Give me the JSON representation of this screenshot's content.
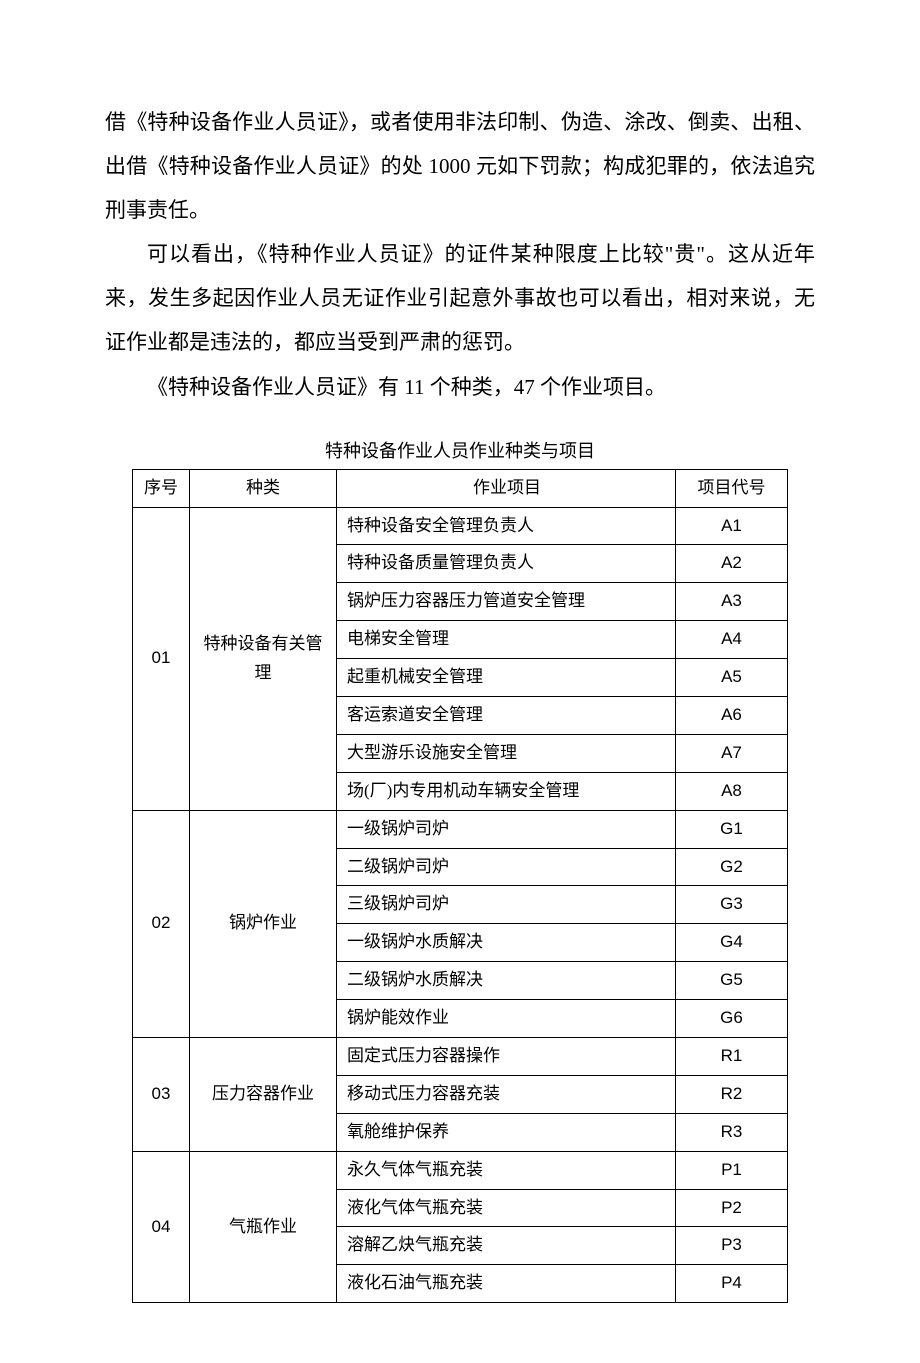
{
  "paragraphs": {
    "p1": "借《特种设备作业人员证》，或者使用非法印制、伪造、涂改、倒卖、出租、出借《特种设备作业人员证》的处 1000 元如下罚款；构成犯罪的，依法追究刑事责任。",
    "p2": "可以看出，《特种作业人员证》的证件某种限度上比较\"贵\"。这从近年来，发生多起因作业人员无证作业引起意外事故也可以看出，相对来说，无证作业都是违法的，都应当受到严肃的惩罚。",
    "p3": "《特种设备作业人员证》有 11 个种类，47 个作业项目。"
  },
  "table": {
    "title": "特种设备作业人员作业种类与项目",
    "headers": {
      "seq": "序号",
      "type": "种类",
      "item": "作业项目",
      "code": "项目代号"
    },
    "groups": [
      {
        "seq": "01",
        "type": "特种设备有关管理",
        "rows": [
          {
            "item": "特种设备安全管理负责人",
            "code": "A1"
          },
          {
            "item": "特种设备质量管理负责人",
            "code": "A2"
          },
          {
            "item": "锅炉压力容器压力管道安全管理",
            "code": "A3"
          },
          {
            "item": "电梯安全管理",
            "code": "A4"
          },
          {
            "item": "起重机械安全管理",
            "code": "A5"
          },
          {
            "item": "客运索道安全管理",
            "code": "A6"
          },
          {
            "item": "大型游乐设施安全管理",
            "code": "A7"
          },
          {
            "item": "场(厂)内专用机动车辆安全管理",
            "code": "A8"
          }
        ]
      },
      {
        "seq": "02",
        "type": "锅炉作业",
        "rows": [
          {
            "item": "一级锅炉司炉",
            "code": "G1"
          },
          {
            "item": "二级锅炉司炉",
            "code": "G2"
          },
          {
            "item": "三级锅炉司炉",
            "code": "G3"
          },
          {
            "item": "一级锅炉水质解决",
            "code": "G4"
          },
          {
            "item": "二级锅炉水质解决",
            "code": "G5"
          },
          {
            "item": "锅炉能效作业",
            "code": "G6"
          }
        ]
      },
      {
        "seq": "03",
        "type": "压力容器作业",
        "rows": [
          {
            "item": "固定式压力容器操作",
            "code": "R1"
          },
          {
            "item": "移动式压力容器充装",
            "code": "R2"
          },
          {
            "item": "氧舱维护保养",
            "code": "R3"
          }
        ]
      },
      {
        "seq": "04",
        "type": "气瓶作业",
        "rows": [
          {
            "item": "永久气体气瓶充装",
            "code": "P1"
          },
          {
            "item": "液化气体气瓶充装",
            "code": "P2"
          },
          {
            "item": "溶解乙炔气瓶充装",
            "code": "P3"
          },
          {
            "item": "液化石油气瓶充装",
            "code": "P4"
          }
        ]
      }
    ]
  }
}
